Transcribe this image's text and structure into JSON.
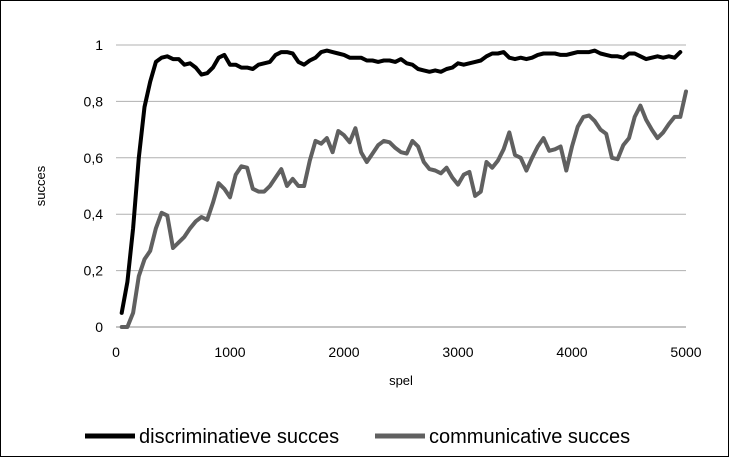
{
  "chart_data": {
    "type": "line",
    "title": "",
    "xlabel": "spel",
    "ylabel": "succes",
    "xlim": [
      0,
      5000
    ],
    "ylim": [
      0,
      1
    ],
    "x_ticks": [
      0,
      1000,
      2000,
      3000,
      4000,
      5000
    ],
    "x_tick_labels": [
      "0",
      "1000",
      "2000",
      "3000",
      "4000",
      "5000"
    ],
    "y_ticks": [
      0,
      0.2,
      0.4,
      0.6,
      0.8,
      1
    ],
    "y_tick_labels": [
      "0",
      "0,2",
      "0,4",
      "0,6",
      "0,8",
      "1"
    ],
    "grid": "horizontal",
    "legend_position": "bottom",
    "series": [
      {
        "name": "discriminatieve succes",
        "color": "#000000",
        "points": [
          [
            50,
            0.05
          ],
          [
            100,
            0.16
          ],
          [
            150,
            0.35
          ],
          [
            200,
            0.6
          ],
          [
            250,
            0.78
          ],
          [
            300,
            0.87
          ],
          [
            350,
            0.94
          ],
          [
            400,
            0.955
          ],
          [
            450,
            0.96
          ],
          [
            500,
            0.95
          ],
          [
            550,
            0.95
          ],
          [
            600,
            0.93
          ],
          [
            650,
            0.935
          ],
          [
            700,
            0.92
          ],
          [
            750,
            0.895
          ],
          [
            800,
            0.9
          ],
          [
            850,
            0.92
          ],
          [
            900,
            0.955
          ],
          [
            950,
            0.965
          ],
          [
            1000,
            0.93
          ],
          [
            1050,
            0.93
          ],
          [
            1100,
            0.92
          ],
          [
            1150,
            0.92
          ],
          [
            1200,
            0.915
          ],
          [
            1250,
            0.93
          ],
          [
            1300,
            0.935
          ],
          [
            1350,
            0.94
          ],
          [
            1400,
            0.965
          ],
          [
            1450,
            0.975
          ],
          [
            1500,
            0.975
          ],
          [
            1550,
            0.97
          ],
          [
            1600,
            0.94
          ],
          [
            1650,
            0.93
          ],
          [
            1700,
            0.945
          ],
          [
            1750,
            0.955
          ],
          [
            1800,
            0.975
          ],
          [
            1850,
            0.98
          ],
          [
            1900,
            0.975
          ],
          [
            1950,
            0.97
          ],
          [
            2000,
            0.965
          ],
          [
            2050,
            0.955
          ],
          [
            2100,
            0.955
          ],
          [
            2150,
            0.955
          ],
          [
            2200,
            0.945
          ],
          [
            2250,
            0.945
          ],
          [
            2300,
            0.94
          ],
          [
            2350,
            0.945
          ],
          [
            2400,
            0.945
          ],
          [
            2450,
            0.94
          ],
          [
            2500,
            0.95
          ],
          [
            2550,
            0.935
          ],
          [
            2600,
            0.93
          ],
          [
            2650,
            0.915
          ],
          [
            2700,
            0.91
          ],
          [
            2750,
            0.905
          ],
          [
            2800,
            0.91
          ],
          [
            2850,
            0.905
          ],
          [
            2900,
            0.915
          ],
          [
            2950,
            0.92
          ],
          [
            3000,
            0.935
          ],
          [
            3050,
            0.93
          ],
          [
            3100,
            0.935
          ],
          [
            3150,
            0.94
          ],
          [
            3200,
            0.945
          ],
          [
            3250,
            0.96
          ],
          [
            3300,
            0.97
          ],
          [
            3350,
            0.97
          ],
          [
            3400,
            0.975
          ],
          [
            3450,
            0.955
          ],
          [
            3500,
            0.95
          ],
          [
            3550,
            0.955
          ],
          [
            3600,
            0.95
          ],
          [
            3650,
            0.955
          ],
          [
            3700,
            0.965
          ],
          [
            3750,
            0.97
          ],
          [
            3800,
            0.97
          ],
          [
            3850,
            0.97
          ],
          [
            3900,
            0.965
          ],
          [
            3950,
            0.965
          ],
          [
            4000,
            0.97
          ],
          [
            4050,
            0.975
          ],
          [
            4100,
            0.975
          ],
          [
            4150,
            0.975
          ],
          [
            4200,
            0.98
          ],
          [
            4250,
            0.97
          ],
          [
            4300,
            0.965
          ],
          [
            4350,
            0.96
          ],
          [
            4400,
            0.96
          ],
          [
            4450,
            0.955
          ],
          [
            4500,
            0.97
          ],
          [
            4550,
            0.97
          ],
          [
            4600,
            0.96
          ],
          [
            4650,
            0.95
          ],
          [
            4700,
            0.955
          ],
          [
            4750,
            0.96
          ],
          [
            4800,
            0.955
          ],
          [
            4850,
            0.96
          ],
          [
            4900,
            0.955
          ],
          [
            4950,
            0.975
          ]
        ]
      },
      {
        "name": "communicative succes",
        "color": "#606060",
        "points": [
          [
            50,
            0.0
          ],
          [
            100,
            0.0
          ],
          [
            150,
            0.05
          ],
          [
            200,
            0.18
          ],
          [
            250,
            0.24
          ],
          [
            300,
            0.27
          ],
          [
            350,
            0.35
          ],
          [
            400,
            0.405
          ],
          [
            450,
            0.395
          ],
          [
            500,
            0.28
          ],
          [
            550,
            0.3
          ],
          [
            600,
            0.32
          ],
          [
            650,
            0.35
          ],
          [
            700,
            0.375
          ],
          [
            750,
            0.39
          ],
          [
            800,
            0.38
          ],
          [
            850,
            0.44
          ],
          [
            900,
            0.51
          ],
          [
            950,
            0.49
          ],
          [
            1000,
            0.46
          ],
          [
            1050,
            0.54
          ],
          [
            1100,
            0.57
          ],
          [
            1150,
            0.565
          ],
          [
            1200,
            0.49
          ],
          [
            1250,
            0.48
          ],
          [
            1300,
            0.48
          ],
          [
            1350,
            0.5
          ],
          [
            1400,
            0.53
          ],
          [
            1450,
            0.56
          ],
          [
            1500,
            0.5
          ],
          [
            1550,
            0.525
          ],
          [
            1600,
            0.5
          ],
          [
            1650,
            0.5
          ],
          [
            1700,
            0.59
          ],
          [
            1750,
            0.66
          ],
          [
            1800,
            0.65
          ],
          [
            1850,
            0.67
          ],
          [
            1900,
            0.62
          ],
          [
            1950,
            0.695
          ],
          [
            2000,
            0.68
          ],
          [
            2050,
            0.655
          ],
          [
            2100,
            0.705
          ],
          [
            2150,
            0.62
          ],
          [
            2200,
            0.585
          ],
          [
            2250,
            0.615
          ],
          [
            2300,
            0.645
          ],
          [
            2350,
            0.66
          ],
          [
            2400,
            0.655
          ],
          [
            2450,
            0.635
          ],
          [
            2500,
            0.62
          ],
          [
            2550,
            0.615
          ],
          [
            2600,
            0.66
          ],
          [
            2650,
            0.64
          ],
          [
            2700,
            0.585
          ],
          [
            2750,
            0.56
          ],
          [
            2800,
            0.555
          ],
          [
            2850,
            0.545
          ],
          [
            2900,
            0.565
          ],
          [
            2950,
            0.53
          ],
          [
            3000,
            0.505
          ],
          [
            3050,
            0.54
          ],
          [
            3100,
            0.55
          ],
          [
            3150,
            0.465
          ],
          [
            3200,
            0.48
          ],
          [
            3250,
            0.585
          ],
          [
            3300,
            0.565
          ],
          [
            3350,
            0.59
          ],
          [
            3400,
            0.63
          ],
          [
            3450,
            0.69
          ],
          [
            3500,
            0.61
          ],
          [
            3550,
            0.6
          ],
          [
            3600,
            0.555
          ],
          [
            3650,
            0.6
          ],
          [
            3700,
            0.64
          ],
          [
            3750,
            0.67
          ],
          [
            3800,
            0.625
          ],
          [
            3850,
            0.63
          ],
          [
            3900,
            0.64
          ],
          [
            3950,
            0.555
          ],
          [
            4000,
            0.64
          ],
          [
            4050,
            0.71
          ],
          [
            4100,
            0.745
          ],
          [
            4150,
            0.75
          ],
          [
            4200,
            0.73
          ],
          [
            4250,
            0.7
          ],
          [
            4300,
            0.685
          ],
          [
            4350,
            0.6
          ],
          [
            4400,
            0.595
          ],
          [
            4450,
            0.645
          ],
          [
            4500,
            0.67
          ],
          [
            4550,
            0.745
          ],
          [
            4600,
            0.785
          ],
          [
            4650,
            0.735
          ],
          [
            4700,
            0.7
          ],
          [
            4750,
            0.67
          ],
          [
            4800,
            0.69
          ],
          [
            4850,
            0.72
          ],
          [
            4900,
            0.745
          ],
          [
            4950,
            0.745
          ],
          [
            5000,
            0.835
          ]
        ]
      }
    ]
  }
}
